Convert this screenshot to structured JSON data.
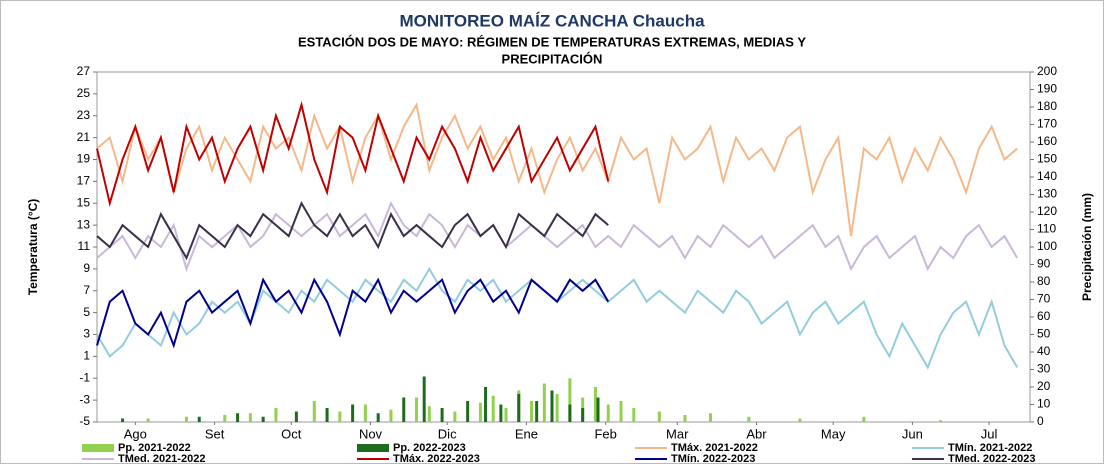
{
  "chart_data": {
    "type": "line",
    "title": "MONITOREO MAÍZ CANCHA Chaucha",
    "subtitle": [
      "ESTACIÓN DOS DE MAYO: RÉGIMEN DE TEMPERATURAS EXTREMAS, MEDIAS Y",
      "PRECIPITACIÓN"
    ],
    "y_label": "Temperatura (°C)",
    "y2_label": "Precipitación (mm)",
    "xlim": [
      0,
      365
    ],
    "xticks": [
      {
        "value": 15,
        "label": "Ago"
      },
      {
        "value": 46,
        "label": "Set"
      },
      {
        "value": 76,
        "label": "Oct"
      },
      {
        "value": 107,
        "label": "Nov"
      },
      {
        "value": 137,
        "label": "Dic"
      },
      {
        "value": 168,
        "label": "Ene"
      },
      {
        "value": 199,
        "label": "Feb"
      },
      {
        "value": 227,
        "label": "Mar"
      },
      {
        "value": 258,
        "label": "Abr"
      },
      {
        "value": 288,
        "label": "May"
      },
      {
        "value": 319,
        "label": "Jun"
      },
      {
        "value": 349,
        "label": "Jul"
      }
    ],
    "ylim": [
      -5,
      27
    ],
    "yticks": [
      -5,
      -3,
      -1,
      1,
      3,
      5,
      7,
      9,
      11,
      13,
      15,
      17,
      19,
      21,
      23,
      25,
      27
    ],
    "y2lim": [
      0,
      200
    ],
    "y2ticks": [
      0,
      10,
      20,
      30,
      40,
      50,
      60,
      70,
      80,
      90,
      100,
      110,
      120,
      130,
      140,
      150,
      160,
      170,
      180,
      190,
      200
    ],
    "grid": false,
    "series": [
      {
        "name": "Pp. 2021-2022",
        "type": "bar",
        "axis": "y2",
        "color": "#92d050",
        "x": [
          20,
          35,
          50,
          60,
          70,
          85,
          95,
          105,
          115,
          125,
          130,
          140,
          150,
          155,
          160,
          165,
          170,
          175,
          180,
          185,
          190,
          195,
          200,
          205,
          210,
          220,
          230,
          240,
          255,
          275,
          300,
          330
        ],
        "values": [
          2,
          3,
          4,
          5,
          8,
          12,
          6,
          10,
          7,
          14,
          9,
          6,
          11,
          15,
          8,
          18,
          12,
          22,
          16,
          25,
          14,
          20,
          10,
          12,
          8,
          6,
          4,
          5,
          3,
          2,
          3,
          1
        ]
      },
      {
        "name": "Pp. 2022-2023",
        "type": "bar",
        "axis": "y2",
        "color": "#1e6b1e",
        "x": [
          10,
          40,
          55,
          65,
          78,
          90,
          100,
          110,
          120,
          128,
          135,
          145,
          152,
          158,
          165,
          172,
          178,
          185,
          190,
          196
        ],
        "values": [
          2,
          3,
          5,
          3,
          6,
          8,
          10,
          5,
          14,
          26,
          8,
          12,
          20,
          10,
          16,
          12,
          18,
          10,
          8,
          14
        ]
      },
      {
        "name": "TMáx. 2021-2022",
        "type": "line",
        "color": "#f5b88a",
        "x": [
          0,
          5,
          10,
          15,
          20,
          25,
          30,
          35,
          40,
          45,
          50,
          55,
          60,
          65,
          70,
          75,
          80,
          85,
          90,
          95,
          100,
          105,
          110,
          115,
          120,
          125,
          130,
          135,
          140,
          145,
          150,
          155,
          160,
          165,
          170,
          175,
          180,
          185,
          190,
          195,
          200,
          205,
          210,
          215,
          220,
          225,
          230,
          235,
          240,
          245,
          250,
          255,
          260,
          265,
          270,
          275,
          280,
          285,
          290,
          295,
          300,
          305,
          310,
          315,
          320,
          325,
          330,
          335,
          340,
          345,
          350,
          355,
          360
        ],
        "values": [
          20,
          21,
          17,
          22,
          19,
          21,
          16,
          20,
          22,
          18,
          21,
          19,
          17,
          22,
          20,
          21,
          18,
          23,
          20,
          22,
          17,
          21,
          23,
          19,
          22,
          24,
          18,
          21,
          23,
          20,
          22,
          19,
          21,
          17,
          20,
          16,
          19,
          21,
          18,
          20,
          17,
          21,
          19,
          20,
          15,
          21,
          19,
          20,
          22,
          17,
          21,
          19,
          20,
          18,
          21,
          22,
          16,
          19,
          21,
          12,
          20,
          19,
          21,
          17,
          20,
          18,
          21,
          19,
          16,
          20,
          22,
          19,
          20
        ]
      },
      {
        "name": "TMín. 2021-2022",
        "type": "line",
        "color": "#93cddd",
        "x": [
          0,
          5,
          10,
          15,
          20,
          25,
          30,
          35,
          40,
          45,
          50,
          55,
          60,
          65,
          70,
          75,
          80,
          85,
          90,
          95,
          100,
          105,
          110,
          115,
          120,
          125,
          130,
          135,
          140,
          145,
          150,
          155,
          160,
          165,
          170,
          175,
          180,
          185,
          190,
          195,
          200,
          205,
          210,
          215,
          220,
          225,
          230,
          235,
          240,
          245,
          250,
          255,
          260,
          265,
          270,
          275,
          280,
          285,
          290,
          295,
          300,
          305,
          310,
          315,
          320,
          325,
          330,
          335,
          340,
          345,
          350,
          355,
          360
        ],
        "values": [
          3,
          1,
          2,
          4,
          3,
          2,
          5,
          3,
          4,
          6,
          5,
          6,
          4,
          7,
          6,
          5,
          7,
          6,
          8,
          7,
          6,
          8,
          7,
          6,
          8,
          7,
          9,
          7,
          6,
          8,
          7,
          8,
          6,
          7,
          8,
          7,
          6,
          7,
          8,
          7,
          6,
          7,
          8,
          6,
          7,
          6,
          5,
          7,
          6,
          5,
          7,
          6,
          4,
          5,
          6,
          3,
          5,
          6,
          4,
          5,
          6,
          3,
          1,
          4,
          2,
          0,
          3,
          5,
          6,
          3,
          6,
          2,
          0
        ]
      },
      {
        "name": "TMed. 2021-2022",
        "type": "line",
        "color": "#c9b8d8",
        "x": [
          0,
          5,
          10,
          15,
          20,
          25,
          30,
          35,
          40,
          45,
          50,
          55,
          60,
          65,
          70,
          75,
          80,
          85,
          90,
          95,
          100,
          105,
          110,
          115,
          120,
          125,
          130,
          135,
          140,
          145,
          150,
          155,
          160,
          165,
          170,
          175,
          180,
          185,
          190,
          195,
          200,
          205,
          210,
          215,
          220,
          225,
          230,
          235,
          240,
          245,
          250,
          255,
          260,
          265,
          270,
          275,
          280,
          285,
          290,
          295,
          300,
          305,
          310,
          315,
          320,
          325,
          330,
          335,
          340,
          345,
          350,
          355,
          360
        ],
        "values": [
          10,
          11,
          12,
          10,
          12,
          11,
          13,
          9,
          12,
          11,
          12,
          13,
          11,
          12,
          14,
          13,
          12,
          13,
          14,
          12,
          13,
          14,
          12,
          15,
          13,
          12,
          14,
          13,
          11,
          13,
          12,
          13,
          11,
          12,
          13,
          12,
          11,
          12,
          13,
          11,
          12,
          11,
          13,
          12,
          11,
          12,
          10,
          12,
          11,
          13,
          12,
          11,
          12,
          10,
          11,
          12,
          13,
          11,
          12,
          9,
          11,
          12,
          10,
          11,
          12,
          9,
          11,
          10,
          12,
          13,
          11,
          12,
          10
        ]
      },
      {
        "name": "TMáx. 2022-2023",
        "type": "line",
        "color": "#c00000",
        "x": [
          0,
          5,
          10,
          15,
          20,
          25,
          30,
          35,
          40,
          45,
          50,
          55,
          60,
          65,
          70,
          75,
          80,
          85,
          90,
          95,
          100,
          105,
          110,
          115,
          120,
          125,
          130,
          135,
          140,
          145,
          150,
          155,
          160,
          165,
          170,
          175,
          180,
          185,
          190,
          195,
          200
        ],
        "values": [
          20,
          15,
          19,
          22,
          18,
          21,
          16,
          22,
          19,
          21,
          17,
          20,
          22,
          18,
          23,
          20,
          24,
          19,
          16,
          22,
          21,
          18,
          23,
          20,
          17,
          21,
          19,
          22,
          20,
          17,
          21,
          18,
          20,
          22,
          17,
          19,
          21,
          18,
          20,
          22,
          17
        ]
      },
      {
        "name": "TMín. 2022-2023",
        "type": "line",
        "color": "#00008b",
        "x": [
          0,
          5,
          10,
          15,
          20,
          25,
          30,
          35,
          40,
          45,
          50,
          55,
          60,
          65,
          70,
          75,
          80,
          85,
          90,
          95,
          100,
          105,
          110,
          115,
          120,
          125,
          130,
          135,
          140,
          145,
          150,
          155,
          160,
          165,
          170,
          175,
          180,
          185,
          190,
          195,
          200
        ],
        "values": [
          2,
          6,
          7,
          4,
          3,
          5,
          2,
          6,
          7,
          5,
          6,
          7,
          4,
          8,
          6,
          7,
          5,
          8,
          6,
          3,
          7,
          6,
          8,
          5,
          7,
          6,
          7,
          8,
          5,
          7,
          8,
          6,
          7,
          5,
          8,
          7,
          6,
          8,
          7,
          8,
          6
        ]
      },
      {
        "name": "TMed. 2022-2023",
        "type": "line",
        "color": "#3b2f4a",
        "x": [
          0,
          5,
          10,
          15,
          20,
          25,
          30,
          35,
          40,
          45,
          50,
          55,
          60,
          65,
          70,
          75,
          80,
          85,
          90,
          95,
          100,
          105,
          110,
          115,
          120,
          125,
          130,
          135,
          140,
          145,
          150,
          155,
          160,
          165,
          170,
          175,
          180,
          185,
          190,
          195,
          200
        ],
        "values": [
          12,
          11,
          13,
          12,
          11,
          14,
          12,
          10,
          13,
          12,
          11,
          13,
          12,
          14,
          13,
          12,
          15,
          13,
          12,
          14,
          12,
          13,
          11,
          14,
          12,
          13,
          12,
          11,
          13,
          14,
          12,
          13,
          11,
          14,
          13,
          12,
          14,
          13,
          12,
          14,
          13
        ]
      }
    ]
  }
}
